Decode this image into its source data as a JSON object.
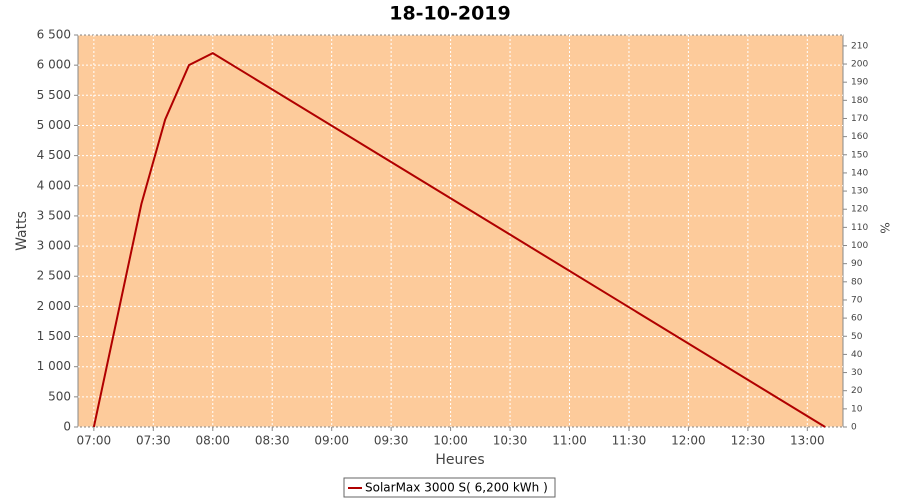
{
  "chart_data": {
    "type": "line",
    "title": "18-10-2019",
    "x_label": "Heures",
    "y_label": "Watts",
    "y2_label": "%",
    "x": [
      "07:00",
      "07:24",
      "07:36",
      "07:48",
      "08:00",
      "13:09"
    ],
    "series": [
      {
        "name": "SolarMax 3000 S( 6,200 kWh )",
        "color": "#b00000",
        "values": [
          0,
          3700,
          5100,
          6000,
          6200,
          0
        ]
      }
    ],
    "xlim": [
      "06:52",
      "13:18"
    ],
    "xticks": [
      "07:00",
      "07:30",
      "08:00",
      "08:30",
      "09:00",
      "09:30",
      "10:00",
      "10:30",
      "11:00",
      "11:30",
      "12:00",
      "12:30",
      "13:00"
    ],
    "ylim": [
      0,
      6500
    ],
    "yticks": [
      0,
      500,
      {
        "value": 1000,
        "label": "1 000"
      },
      {
        "value": 1500,
        "label": "1 500"
      },
      {
        "value": 2000,
        "label": "2 000"
      },
      {
        "value": 2500,
        "label": "2 500"
      },
      {
        "value": 3000,
        "label": "3 000"
      },
      {
        "value": 3500,
        "label": "3 500"
      },
      {
        "value": 4000,
        "label": "4 000"
      },
      {
        "value": 4500,
        "label": "4 500"
      },
      {
        "value": 5000,
        "label": "5 000"
      },
      {
        "value": 5500,
        "label": "5 500"
      },
      {
        "value": 6000,
        "label": "6 000"
      },
      {
        "value": 6500,
        "label": "6 500"
      }
    ],
    "y2lim": [
      0,
      216
    ],
    "y2ticks": [
      0,
      10,
      20,
      30,
      40,
      50,
      60,
      70,
      80,
      90,
      100,
      110,
      120,
      130,
      140,
      150,
      160,
      170,
      180,
      190,
      200,
      210
    ],
    "grid": true,
    "plot_background": "#fdcb9b"
  }
}
